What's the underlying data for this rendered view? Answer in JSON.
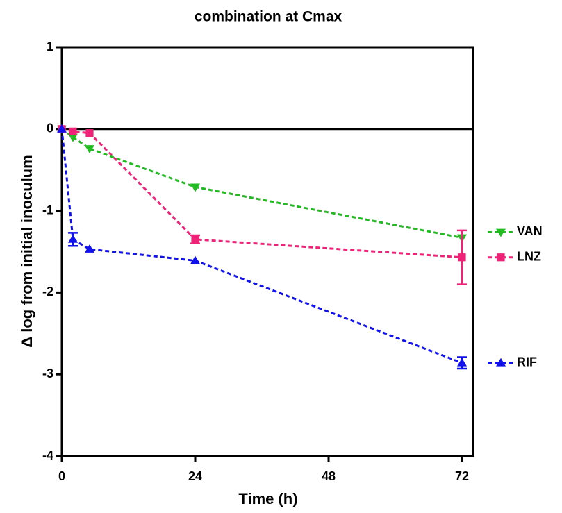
{
  "chart_data": {
    "type": "line",
    "title": "combination at Cmax",
    "x_label": "Time (h)",
    "y_label": "Δ log from initial inoculum",
    "x": [
      0,
      2,
      5,
      24,
      72
    ],
    "series": [
      {
        "name": "VAN",
        "color": "#22bb22",
        "marker": "triangle-down",
        "values": [
          0,
          -0.1,
          -0.24,
          -0.71,
          -1.33
        ],
        "errors": [
          null,
          null,
          null,
          null,
          null
        ]
      },
      {
        "name": "LNZ",
        "color": "#ee2277",
        "marker": "square",
        "values": [
          0,
          -0.03,
          -0.05,
          -1.35,
          -1.57
        ],
        "errors": [
          null,
          null,
          null,
          0.05,
          0.33
        ]
      },
      {
        "name": "RIF",
        "color": "#1111ee",
        "marker": "triangle-up",
        "values": [
          0,
          -1.35,
          -1.47,
          -1.61,
          -2.86
        ],
        "errors": [
          null,
          0.08,
          null,
          null,
          0.07
        ]
      }
    ],
    "xlim": [
      0,
      74
    ],
    "xticks": [
      0,
      24,
      48,
      72
    ],
    "ylim": [
      -4,
      1
    ],
    "yticks": [
      1,
      0,
      -1,
      -2,
      -3,
      -4
    ],
    "zero_line": true,
    "legend": "right"
  }
}
